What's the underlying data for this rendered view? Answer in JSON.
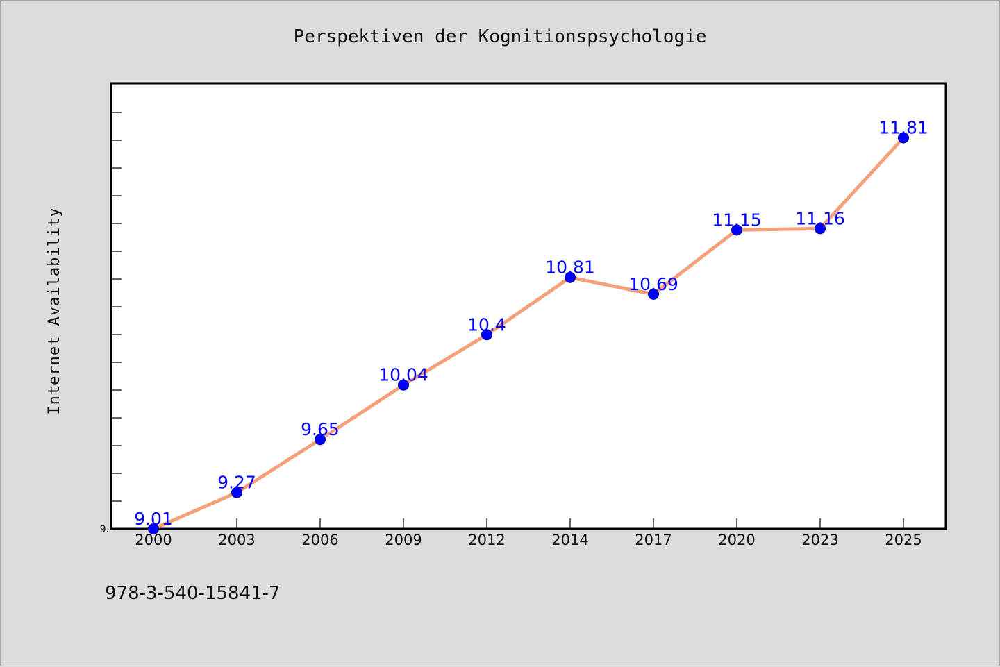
{
  "chart_data": {
    "type": "line",
    "title": "Perspektiven der Kognitionspsychologie",
    "xlabel": "",
    "ylabel": "Internet Availability",
    "categories": [
      "2000",
      "2003",
      "2006",
      "2009",
      "2012",
      "2014",
      "2017",
      "2020",
      "2023",
      "2025"
    ],
    "series": [
      {
        "values": [
          9.01,
          9.27,
          9.65,
          10.04,
          10.4,
          10.81,
          10.69,
          11.15,
          11.16,
          11.81
        ],
        "line_color": "#f4a07a",
        "marker_color": "#0000ff"
      }
    ],
    "data_labels": [
      "9.01",
      "9.27",
      "9.65",
      "10.04",
      "10.4",
      "10.81",
      "10.69",
      "11.15",
      "11.16",
      "11.81"
    ],
    "y_tick_labels": [
      "9."
    ],
    "ylim": [
      9.01,
      12.2
    ],
    "grid": false,
    "legend": "none",
    "label_color": "#0000ff"
  },
  "footnote": "978-3-540-15841-7",
  "colors": {
    "background": "#dcdcdc",
    "plot_background": "#ffffff"
  }
}
